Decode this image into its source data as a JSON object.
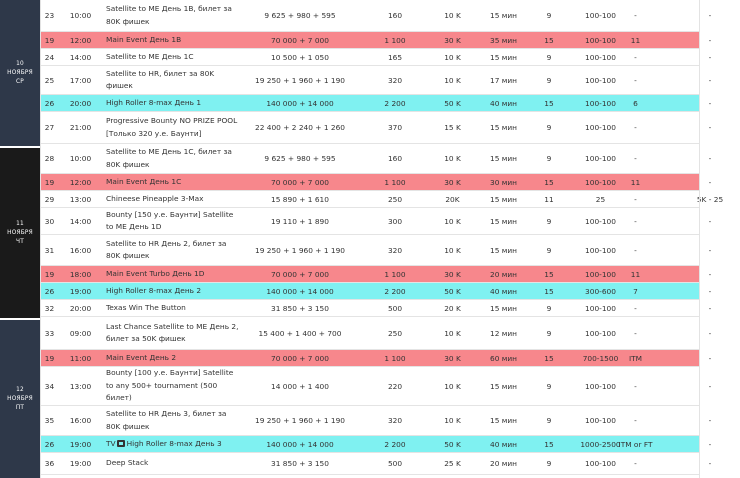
{
  "colors": {
    "day_bg": "#2e3849",
    "day_bg_dark": "#1a1a1a",
    "red_row": "#f7878c",
    "cyan_row": "#7ff1f1"
  },
  "days": [
    {
      "day": "10",
      "month": "НОЯБРЯ",
      "weekday": "СР"
    },
    {
      "day": "11",
      "month": "НОЯБРЯ",
      "weekday": "ЧТ"
    },
    {
      "day": "12",
      "month": "НОЯБРЯ",
      "weekday": "ПТ"
    }
  ],
  "rows": [
    {
      "type": "white",
      "no": "23",
      "time": "10:00",
      "name": "Satellite to ME День 1B, билет за 80K фишек",
      "buyin": "9 625 + 980 + 595",
      "gtd": "160",
      "stack": "10 K",
      "levels": "15 мин",
      "late": "9",
      "limits": "100-100",
      "prize": "-",
      "extra": "",
      "last": "-"
    },
    {
      "type": "red",
      "no": "19",
      "time": "12:00",
      "name": "Main Event День 1B",
      "buyin": "70 000 + 7 000",
      "gtd": "1 100",
      "stack": "30 K",
      "levels": "35 мин",
      "late": "15",
      "limits": "100-100",
      "prize": "11",
      "extra": "",
      "last": "-"
    },
    {
      "type": "white",
      "no": "24",
      "time": "14:00",
      "name": "Satellite to ME День 1C",
      "buyin": "10 500 + 1 050",
      "gtd": "165",
      "stack": "10 K",
      "levels": "15 мин",
      "late": "9",
      "limits": "100-100",
      "prize": "-",
      "extra": "",
      "last": "-"
    },
    {
      "type": "white",
      "no": "25",
      "time": "17:00",
      "name": "Satellite to HR, билет за 80K фишек",
      "buyin": "19 250 + 1 960 + 1 190",
      "gtd": "320",
      "stack": "10 K",
      "levels": "17 мин",
      "late": "9",
      "limits": "100-100",
      "prize": "-",
      "extra": "",
      "last": "-"
    },
    {
      "type": "cyan",
      "no": "26",
      "time": "20:00",
      "name": "High Roller 8-max День 1",
      "buyin": "140 000 + 14 000",
      "gtd": "2 200",
      "stack": "50 K",
      "levels": "40 мин",
      "late": "15",
      "limits": "100-100",
      "prize": "6",
      "extra": "",
      "last": "-"
    },
    {
      "type": "white",
      "no": "27",
      "time": "21:00",
      "name": "Progressive Bounty NO PRIZE POOL [Только 320 у.е. Баунти]",
      "buyin": "22 400 + 2 240 + 1 260",
      "gtd": "370",
      "stack": "15 K",
      "levels": "15 мин",
      "late": "9",
      "limits": "100-100",
      "prize": "-",
      "extra": "",
      "last": "-"
    },
    {
      "type": "white",
      "no": "28",
      "time": "10:00",
      "name": "Satellite to ME День 1C, билет за 80K фишек",
      "buyin": "9 625 + 980 + 595",
      "gtd": "160",
      "stack": "10 K",
      "levels": "15 мин",
      "late": "9",
      "limits": "100-100",
      "prize": "-",
      "extra": "",
      "last": "-"
    },
    {
      "type": "red",
      "no": "19",
      "time": "12:00",
      "name": "Main Event День 1C",
      "buyin": "70 000 + 7 000",
      "gtd": "1 100",
      "stack": "30 K",
      "levels": "30 мин",
      "late": "15",
      "limits": "100-100",
      "prize": "11",
      "extra": "",
      "last": "-"
    },
    {
      "type": "white",
      "no": "29",
      "time": "13:00",
      "name": "Chineese Pineapple 3-Max",
      "buyin": "15 890 + 1 610",
      "gtd": "250",
      "stack": "20K",
      "levels": "15 мин",
      "late": "11",
      "limits": "25",
      "prize": "-",
      "extra": "",
      "last": "5K - 25"
    },
    {
      "type": "white",
      "no": "30",
      "time": "14:00",
      "name": "Bounty [150 у.е. Баунти] Satellite to ME День 1D",
      "buyin": "19 110 + 1 890",
      "gtd": "300",
      "stack": "10 K",
      "levels": "15 мин",
      "late": "9",
      "limits": "100-100",
      "prize": "-",
      "extra": "",
      "last": "-"
    },
    {
      "type": "white",
      "no": "31",
      "time": "16:00",
      "name": "Satellite to HR День 2, билет за 80K фишек",
      "buyin": "19 250 + 1 960 + 1 190",
      "gtd": "320",
      "stack": "10 K",
      "levels": "15 мин",
      "late": "9",
      "limits": "100-100",
      "prize": "-",
      "extra": "",
      "last": "-"
    },
    {
      "type": "red",
      "no": "19",
      "time": "18:00",
      "name": "Main Event Turbo День 1D",
      "buyin": "70 000 + 7 000",
      "gtd": "1 100",
      "stack": "30 K",
      "levels": "20 мин",
      "late": "15",
      "limits": "100-100",
      "prize": "11",
      "extra": "",
      "last": "-"
    },
    {
      "type": "cyan",
      "no": "26",
      "time": "19:00",
      "name": "High Roller 8-max День 2",
      "buyin": "140 000 + 14 000",
      "gtd": "2 200",
      "stack": "50 K",
      "levels": "40 мин",
      "late": "15",
      "limits": "300-600",
      "prize": "7",
      "extra": "",
      "last": "-"
    },
    {
      "type": "white",
      "no": "32",
      "time": "20:00",
      "name": "Texas Win The Button",
      "buyin": "31 850 + 3 150",
      "gtd": "500",
      "stack": "20 K",
      "levels": "15 мин",
      "late": "9",
      "limits": "100-100",
      "prize": "-",
      "extra": "",
      "last": "-"
    },
    {
      "type": "white",
      "no": "33",
      "time": "09:00",
      "name": "Last Chance Satellite to ME День 2, билет за 50K фишек",
      "buyin": "15 400 + 1 400 + 700",
      "gtd": "250",
      "stack": "10 K",
      "levels": "12 мин",
      "late": "9",
      "limits": "100-100",
      "prize": "-",
      "extra": "",
      "last": "-"
    },
    {
      "type": "red",
      "no": "19",
      "time": "11:00",
      "name": "Main Event День 2",
      "buyin": "70 000 + 7 000",
      "gtd": "1 100",
      "stack": "30 K",
      "levels": "60 мин",
      "late": "15",
      "limits": "700-1500",
      "prize": "ITM",
      "extra": "",
      "last": "-"
    },
    {
      "type": "white",
      "no": "34",
      "time": "13:00",
      "name": "Bounty [100 у.е. Баунти] Satellite to any 500+ tournament (500 билет)",
      "buyin": "14 000 + 1 400",
      "gtd": "220",
      "stack": "10 K",
      "levels": "15 мин",
      "late": "9",
      "limits": "100-100",
      "prize": "-",
      "extra": "",
      "last": "-"
    },
    {
      "type": "white",
      "no": "35",
      "time": "16:00",
      "name": "Satellite to HR День 3, билет за 80K фишек",
      "buyin": "19 250 + 1 960 + 1 190",
      "gtd": "320",
      "stack": "10 K",
      "levels": "15 мин",
      "late": "9",
      "limits": "100-100",
      "prize": "-",
      "extra": "",
      "last": "-"
    },
    {
      "type": "cyan",
      "no": "26",
      "time": "19:00",
      "name": "High Roller 8-max День 3",
      "tv": true,
      "tv_label": "TV",
      "buyin": "140 000 + 14 000",
      "gtd": "2 200",
      "stack": "50 K",
      "levels": "40 мин",
      "late": "15",
      "limits": "1000-2500",
      "prize": "ITM or FT",
      "extra": "",
      "last": "-"
    },
    {
      "type": "white",
      "no": "36",
      "time": "19:00",
      "name": "Deep Stack",
      "buyin": "31 850 + 3 150",
      "gtd": "500",
      "stack": "25 K",
      "levels": "20 мин",
      "late": "9",
      "limits": "100-100",
      "prize": "-",
      "extra": "",
      "last": "-"
    }
  ]
}
